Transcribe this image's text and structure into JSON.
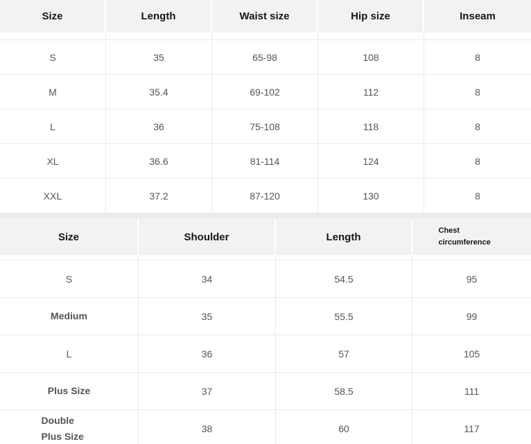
{
  "colors": {
    "header_bg": "#f2f2f2",
    "row_bg": "#ffffff",
    "border": "#e9e9e9",
    "table_gap": "#ececec",
    "header_text": "#161616",
    "cell_text": "#545454"
  },
  "tables": [
    {
      "id": "pants-size-chart",
      "columns": [
        "Size",
        "Length",
        "Waist size",
        "Hip size",
        "Inseam"
      ],
      "rows": [
        [
          "S",
          "35",
          "65-98",
          "108",
          "8"
        ],
        [
          "M",
          "35.4",
          "69-102",
          "112",
          "8"
        ],
        [
          "L",
          "36",
          "75-108",
          "118",
          "8"
        ],
        [
          "XL",
          "36.6",
          "81-114",
          "124",
          "8"
        ],
        [
          "XXL",
          "37.2",
          "87-120",
          "130",
          "8"
        ]
      ]
    },
    {
      "id": "top-size-chart",
      "columns": [
        "Size",
        "Shoulder",
        "Length",
        "Chest circumference"
      ],
      "rows": [
        [
          "S",
          "34",
          "54.5",
          "95"
        ],
        [
          "Medium",
          "35",
          "55.5",
          "99"
        ],
        [
          "L",
          "36",
          "57",
          "105"
        ],
        [
          "Plus Size",
          "37",
          "58.5",
          "111"
        ],
        [
          "Double Plus Size",
          "38",
          "60",
          "117"
        ]
      ]
    }
  ]
}
